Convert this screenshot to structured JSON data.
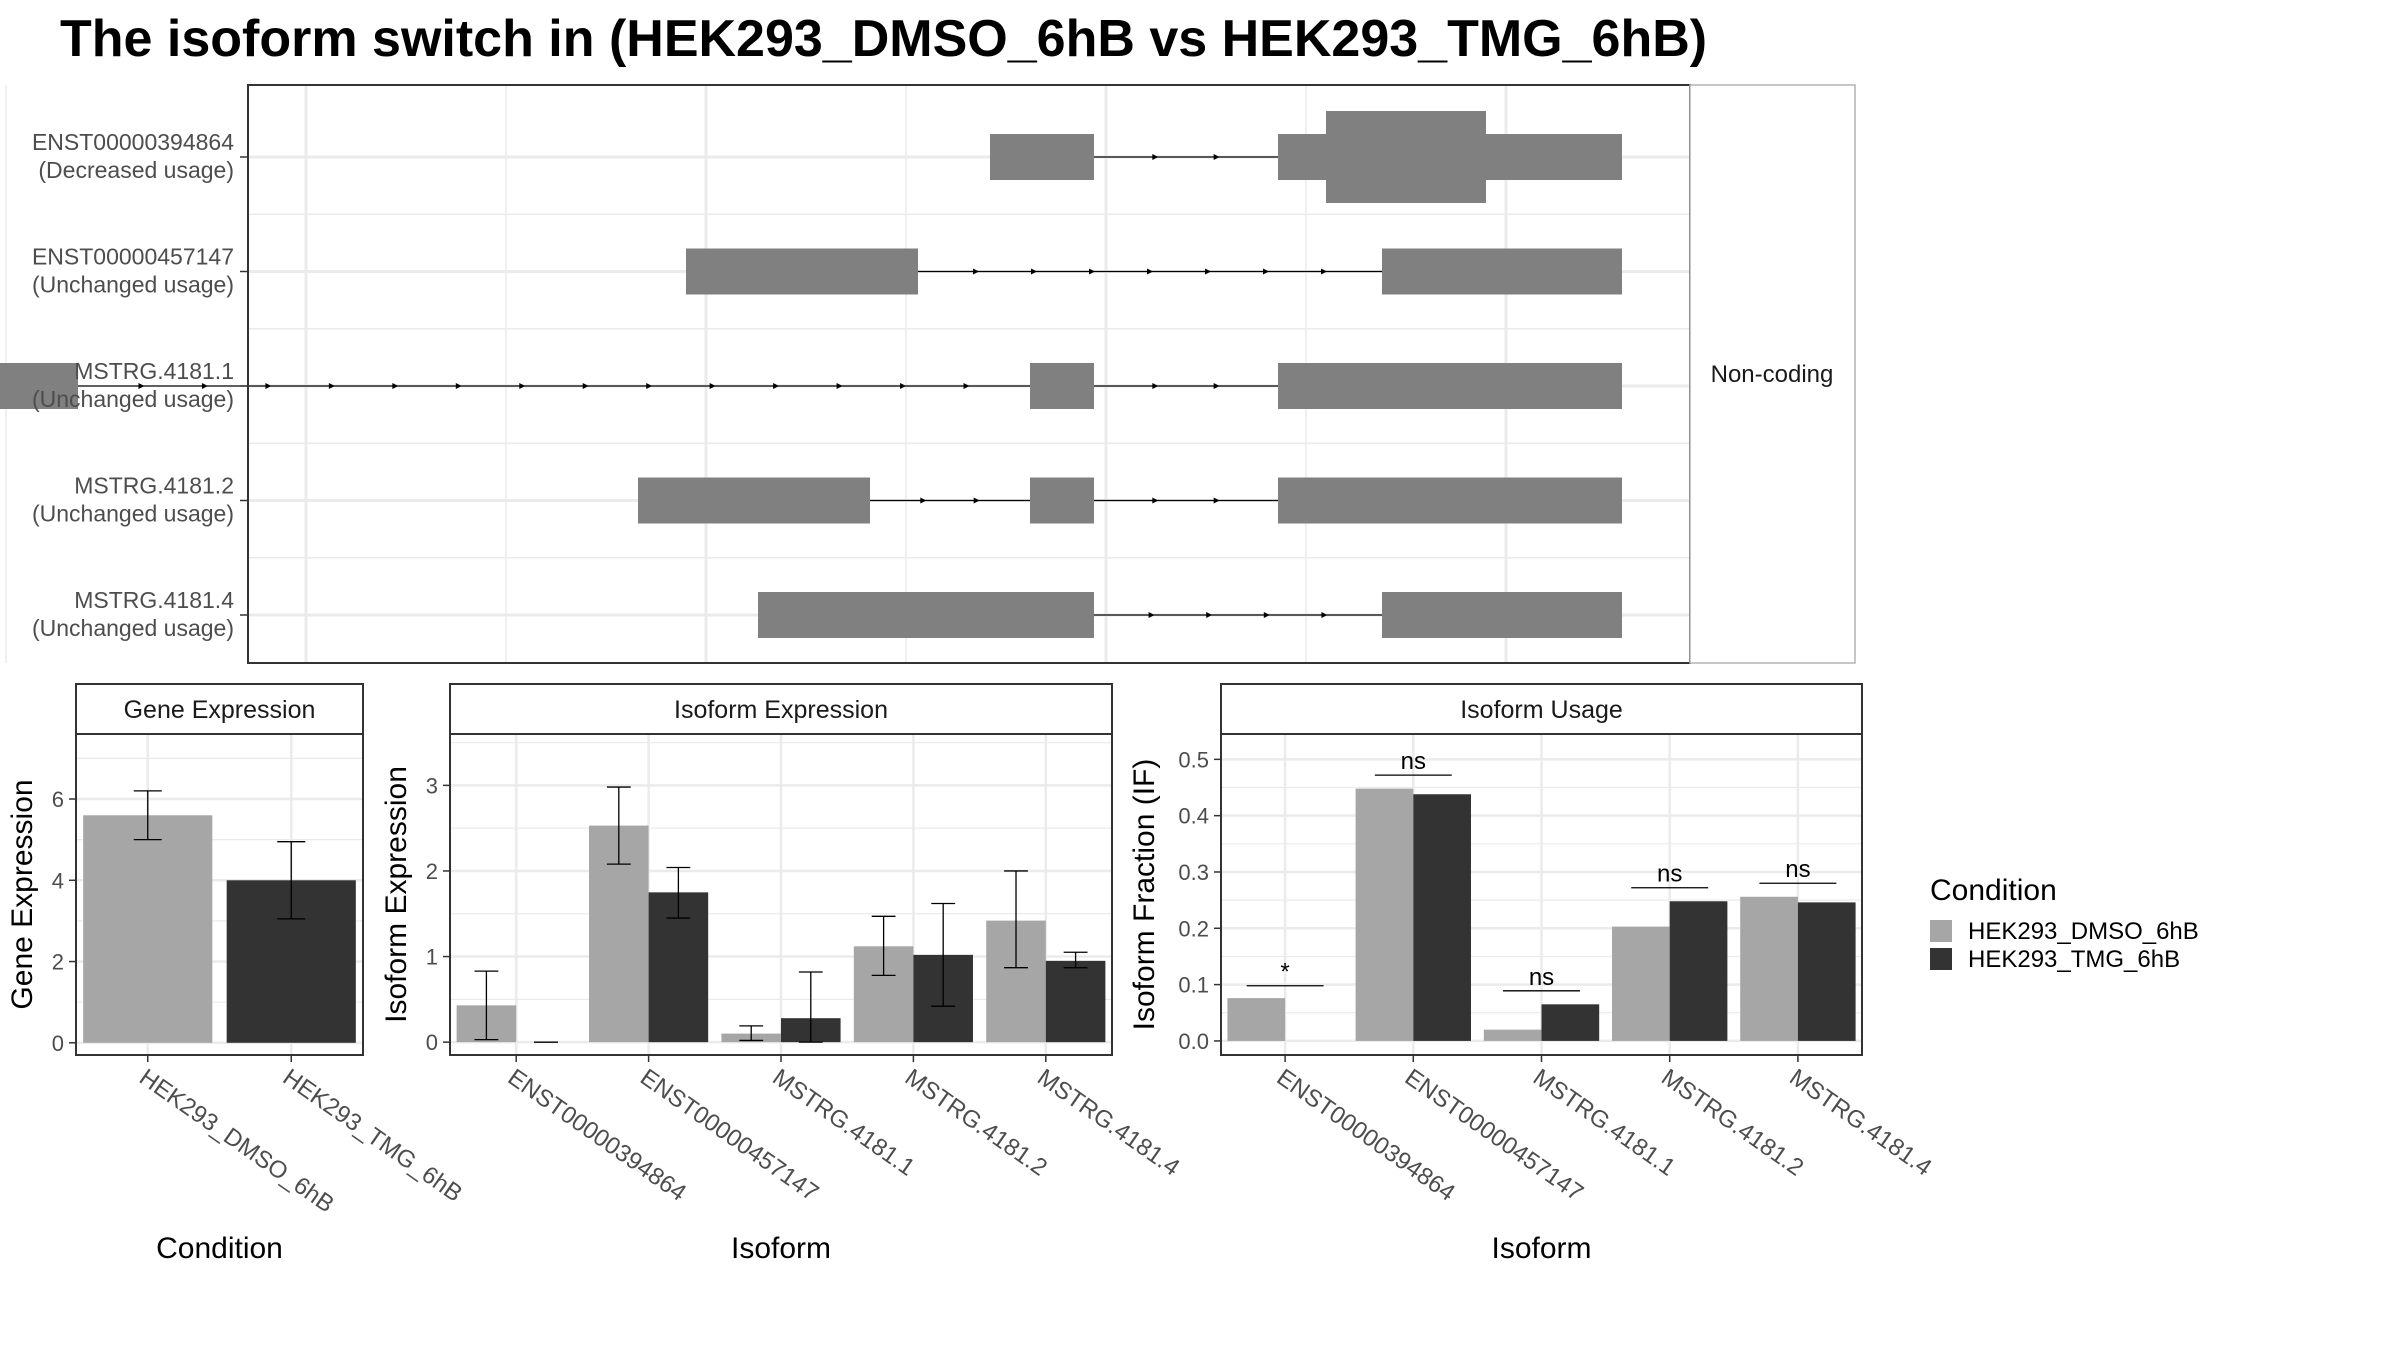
{
  "title": "The isoform switch in  (HEK293_DMSO_6hB vs HEK293_TMG_6hB)",
  "colors": {
    "dmso": "#a6a6a6",
    "tmg": "#333333",
    "exon": "#808080",
    "grid": "#ebebeb",
    "panel_border": "#333333"
  },
  "structure": {
    "strip_label": "Non-coding",
    "transcripts": [
      {
        "id": "ENST00000394864",
        "usage": "(Decreased usage)",
        "exons": [
          [
            1.71,
            1.97
          ],
          [
            2.43,
            2.55
          ],
          [
            2.55,
            2.95
          ],
          [
            2.95,
            3.29
          ]
        ],
        "thick": [
          [
            2.55,
            2.95
          ]
        ]
      },
      {
        "id": "ENST00000457147",
        "usage": "(Unchanged usage)",
        "exons": [
          [
            0.95,
            1.53
          ],
          [
            2.69,
            3.29
          ]
        ],
        "thick": []
      },
      {
        "id": "MSTRG.4181.1",
        "usage": "(Unchanged usage)",
        "exons": [
          [
            -0.77,
            -0.57
          ],
          [
            1.81,
            1.97
          ],
          [
            2.43,
            3.29
          ]
        ],
        "thick": []
      },
      {
        "id": "MSTRG.4181.2",
        "usage": "(Unchanged usage)",
        "exons": [
          [
            0.83,
            1.41
          ],
          [
            1.81,
            1.97
          ],
          [
            2.43,
            3.29
          ]
        ],
        "thick": []
      },
      {
        "id": "MSTRG.4181.4",
        "usage": "(Unchanged usage)",
        "exons": [
          [
            1.13,
            1.97
          ],
          [
            2.69,
            3.29
          ]
        ],
        "thick": []
      }
    ]
  },
  "legend": {
    "title": "Condition",
    "entries": [
      "HEK293_DMSO_6hB",
      "HEK293_TMG_6hB"
    ]
  },
  "chart_data": [
    {
      "type": "bar",
      "title": "Gene Expression",
      "xlabel": "Condition",
      "ylabel": "Gene Expression",
      "ylim": [
        -0.3,
        7.6
      ],
      "yticks": [
        0,
        2,
        4,
        6
      ],
      "categories": [
        "HEK293_DMSO_6hB",
        "HEK293_TMG_6hB"
      ],
      "values": [
        5.6,
        4.0
      ],
      "errors": [
        [
          5.0,
          6.2
        ],
        [
          3.05,
          4.95
        ]
      ]
    },
    {
      "type": "bar",
      "title": "Isoform Expression",
      "xlabel": "Isoform",
      "ylabel": "Isoform Expression",
      "ylim": [
        -0.15,
        3.6
      ],
      "yticks": [
        0,
        1,
        2,
        3
      ],
      "categories": [
        "ENST00000394864",
        "ENST00000457147",
        "MSTRG.4181.1",
        "MSTRG.4181.2",
        "MSTRG.4181.4"
      ],
      "series": [
        {
          "name": "HEK293_DMSO_6hB",
          "values": [
            0.43,
            2.53,
            0.1,
            1.12,
            1.42
          ],
          "errors": [
            [
              0.03,
              0.83
            ],
            [
              2.08,
              2.98
            ],
            [
              0.02,
              0.19
            ],
            [
              0.78,
              1.47
            ],
            [
              0.87,
              2.0
            ]
          ]
        },
        {
          "name": "HEK293_TMG_6hB",
          "values": [
            0.0,
            1.75,
            0.28,
            1.02,
            0.95
          ],
          "errors": [
            [
              0.0,
              0.0
            ],
            [
              1.45,
              2.04
            ],
            [
              0.0,
              0.82
            ],
            [
              0.42,
              1.62
            ],
            [
              0.87,
              1.05
            ]
          ]
        }
      ]
    },
    {
      "type": "bar",
      "title": "Isoform Usage",
      "xlabel": "Isoform",
      "ylabel": "Isoform Fraction (IF)",
      "ylim": [
        -0.025,
        0.545
      ],
      "yticks": [
        0.0,
        0.1,
        0.2,
        0.3,
        0.4,
        0.5
      ],
      "ytick_labels": [
        "0.0",
        "0.1",
        "0.2",
        "0.3",
        "0.4",
        "0.5"
      ],
      "categories": [
        "ENST00000394864",
        "ENST00000457147",
        "MSTRG.4181.1",
        "MSTRG.4181.2",
        "MSTRG.4181.4"
      ],
      "series": [
        {
          "name": "HEK293_DMSO_6hB",
          "values": [
            0.076,
            0.448,
            0.02,
            0.203,
            0.256
          ]
        },
        {
          "name": "HEK293_TMG_6hB",
          "values": [
            0.0,
            0.438,
            0.065,
            0.248,
            0.246
          ]
        }
      ],
      "significance": [
        {
          "label": "*",
          "y": 0.098
        },
        {
          "label": "ns",
          "y": 0.472
        },
        {
          "label": "ns",
          "y": 0.089
        },
        {
          "label": "ns",
          "y": 0.272
        },
        {
          "label": "ns",
          "y": 0.28
        }
      ]
    }
  ]
}
